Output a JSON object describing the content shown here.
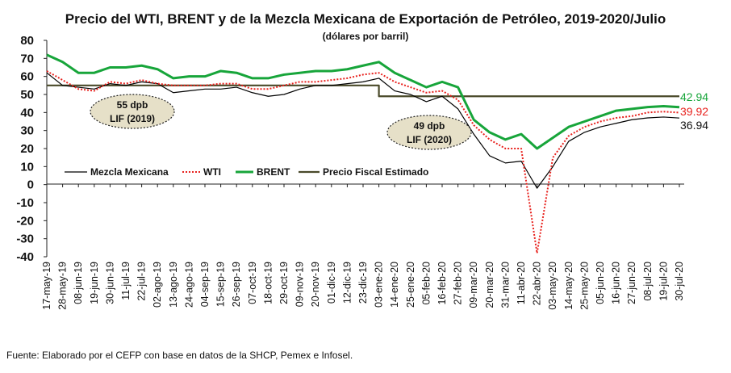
{
  "chart_data": {
    "type": "line",
    "title": "Precio del WTI, BRENT y de la Mezcla Mexicana de Exportación de Petróleo, 2019-2020/Julio",
    "subtitle": "(dólares por barril)",
    "ylim": [
      -40,
      80
    ],
    "yticks": [
      "80",
      "70",
      "60",
      "50",
      "40",
      "30",
      "20",
      "10",
      "0",
      "-10",
      "-20",
      "-30",
      "-40"
    ],
    "x_labels": [
      "17-may-19",
      "28-may-19",
      "08-jun-19",
      "19-jun-19",
      "30-jun-19",
      "11-jul-19",
      "22-jul-19",
      "02-ago-19",
      "13-ago-19",
      "24-ago-19",
      "04-sep-19",
      "15-sep-19",
      "26-sep-19",
      "07-oct-19",
      "18-oct-19",
      "29-oct-19",
      "09-nov-19",
      "20-nov-19",
      "01-dic-19",
      "12-dic-19",
      "23-dic-19",
      "03-ene-20",
      "14-ene-20",
      "25-ene-20",
      "05-feb-20",
      "16-feb-20",
      "27-feb-20",
      "09-mar-20",
      "20-mar-20",
      "31-mar-20",
      "11-abr-20",
      "22-abr-20",
      "03-may-20",
      "14-may-20",
      "25-may-20",
      "05-jun-20",
      "16-jun-20",
      "27-jun-20",
      "08-jul-20",
      "19-jul-20",
      "30-jul-20"
    ],
    "series": [
      {
        "name": "Mezcla Mexicana",
        "color": "#000000",
        "style": "solid",
        "end_label": "36.94",
        "values": [
          62,
          55,
          54,
          53,
          56,
          55,
          57,
          56,
          51,
          52,
          53,
          53,
          54,
          51,
          49,
          50,
          53,
          55,
          55,
          56,
          57,
          59,
          52,
          50,
          46,
          49,
          42,
          28,
          16,
          12,
          13,
          -2,
          10,
          24,
          29,
          32,
          34,
          36,
          37,
          37.5,
          36.94
        ]
      },
      {
        "name": "WTI",
        "color": "#e8221e",
        "style": "dotted",
        "end_label": "39.92",
        "values": [
          63,
          58,
          53,
          52,
          57,
          56,
          58,
          56,
          55,
          55,
          55,
          56,
          56,
          53,
          53,
          55,
          57,
          57,
          58,
          59,
          61,
          62,
          57,
          54,
          51,
          52,
          47,
          33,
          25,
          20,
          20,
          -38,
          15,
          27,
          32,
          35,
          37,
          38,
          40,
          40.5,
          39.92
        ]
      },
      {
        "name": "BRENT",
        "color": "#17a53a",
        "style": "solid",
        "end_label": "42.94",
        "values": [
          72,
          68,
          62,
          62,
          65,
          65,
          66,
          64,
          59,
          60,
          60,
          63,
          62,
          59,
          59,
          61,
          62,
          63,
          63,
          64,
          66,
          68,
          62,
          58,
          54,
          57,
          54,
          36,
          29,
          25,
          28,
          20,
          26,
          32,
          35,
          38,
          41,
          42,
          43,
          43.5,
          42.94
        ]
      },
      {
        "name": "Precio Fiscal Estimado",
        "color": "#4a4a2a",
        "style": "solid",
        "end_label": "",
        "values": [
          55,
          55,
          55,
          55,
          55,
          55,
          55,
          55,
          55,
          55,
          55,
          55,
          55,
          55,
          55,
          55,
          55,
          55,
          55,
          55,
          55,
          49,
          49,
          49,
          49,
          49,
          49,
          49,
          49,
          49,
          49,
          49,
          49,
          49,
          49,
          49,
          49,
          49,
          49,
          49,
          49
        ]
      }
    ],
    "annotations": [
      {
        "line1": "55 dpb",
        "line2": "LIF (2019)"
      },
      {
        "line1": "49 dpb",
        "line2": "LIF (2020)"
      }
    ],
    "legend_position": "middle-left",
    "grid": false
  },
  "source": "Fuente: Elaborado por el CEFP con base en datos de la SHCP, Pemex e Infosel."
}
